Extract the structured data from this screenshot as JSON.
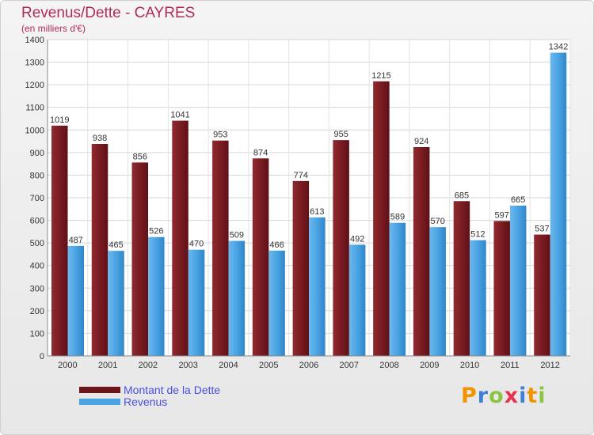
{
  "header": {
    "title": "Revenus/Dette - CAYRES",
    "subtitle": "(en milliers d'€)"
  },
  "legend": {
    "items": [
      {
        "label": "Montant de la Dette",
        "color": "#7a1c22"
      },
      {
        "label": "Revenus",
        "color": "#4aa3e3"
      }
    ]
  },
  "logo": {
    "letters": [
      "P",
      "r",
      "o",
      "x",
      "i",
      "t",
      "i"
    ]
  },
  "chart_data": {
    "type": "bar",
    "title": "Revenus/Dette - CAYRES",
    "subtitle": "(en milliers d'€)",
    "xlabel": "",
    "ylabel": "",
    "ylim": [
      0,
      1400
    ],
    "yticks": [
      0,
      100,
      200,
      300,
      400,
      500,
      600,
      700,
      800,
      900,
      1000,
      1100,
      1200,
      1300,
      1400
    ],
    "grid": true,
    "legend_position": "bottom-left",
    "categories": [
      "2000",
      "2001",
      "2002",
      "2003",
      "2004",
      "2005",
      "2006",
      "2007",
      "2008",
      "2009",
      "2010",
      "2011",
      "2012"
    ],
    "series": [
      {
        "name": "Montant de la Dette",
        "color": "#7a1c22",
        "values": [
          1019,
          938,
          856,
          1041,
          953,
          874,
          774,
          955,
          1215,
          924,
          685,
          597,
          537
        ]
      },
      {
        "name": "Revenus",
        "color": "#4aa3e3",
        "values": [
          487,
          465,
          526,
          470,
          509,
          466,
          613,
          492,
          589,
          570,
          512,
          665,
          1342
        ]
      }
    ]
  }
}
